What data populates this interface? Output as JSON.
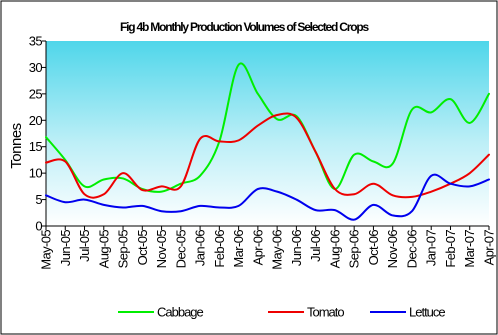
{
  "chart_data": {
    "type": "line",
    "title": "Fig 4b Monthly Production Volumes of Selected Crops",
    "ylabel": "Tonnes",
    "xlabel": "",
    "ylim": [
      0,
      35
    ],
    "yticks": [
      "0",
      "5",
      "10",
      "15",
      "20",
      "25",
      "30",
      "35"
    ],
    "yticks_values": [
      0,
      5,
      10,
      15,
      20,
      25,
      30,
      35
    ],
    "categories": [
      "May-05",
      "Jun-05",
      "Jul-05",
      "Aug-05",
      "Sep-05",
      "Oct-05",
      "Nov-05",
      "Dec-05",
      "Jan-06",
      "Feb-06",
      "Mar-06",
      "Apr-06",
      "May-06",
      "Jun-06",
      "Jul-06",
      "Aug-06",
      "Sep-06",
      "Oct-06",
      "Nov-06",
      "Dec-06",
      "Jan-07",
      "Feb-07",
      "Mar-07",
      "Apr-07"
    ],
    "tick_labels": [
      "May-05",
      "Jun-05",
      "Jul-05",
      "Aug-05",
      "Sep-05",
      "Oct-05",
      "Nov-05",
      "Dec-05",
      "Jan-06",
      "Feb-06",
      "Mar-06",
      "Apr-06",
      "May-06",
      "Jun-06",
      "Jul-06",
      "Aug-06",
      "Sep-06",
      "Oct-06",
      "Nov-06",
      "Dec-06",
      "Jan-07",
      "Feb-07",
      "Mar-07",
      "Apr-07"
    ],
    "grid": false,
    "legend_position": "bottom",
    "series": [
      {
        "name": "Cabbage",
        "color": "#00ee00",
        "values": [
          16.8,
          12.5,
          7.5,
          8.8,
          9.0,
          7.0,
          6.5,
          8.0,
          9.5,
          16.0,
          30.5,
          25.0,
          20.2,
          20.8,
          14.0,
          7.0,
          13.5,
          12.2,
          11.8,
          22.0,
          21.5,
          24.0,
          19.5,
          25.0
        ]
      },
      {
        "name": "Tomato",
        "color": "#ee0000",
        "values": [
          12.0,
          12.2,
          6.0,
          6.0,
          10.0,
          6.8,
          7.5,
          7.5,
          16.5,
          16.0,
          16.2,
          19.0,
          21.0,
          20.5,
          14.0,
          7.0,
          6.0,
          8.0,
          5.8,
          5.5,
          6.5,
          8.0,
          10.0,
          13.5
        ]
      },
      {
        "name": "Lettuce",
        "color": "#0000ee",
        "values": [
          5.8,
          4.5,
          5.0,
          4.0,
          3.5,
          3.8,
          2.8,
          2.8,
          3.8,
          3.5,
          3.8,
          7.0,
          6.5,
          5.0,
          3.0,
          3.0,
          1.2,
          4.0,
          2.0,
          2.8,
          9.5,
          8.0,
          7.5,
          8.8
        ]
      }
    ]
  }
}
